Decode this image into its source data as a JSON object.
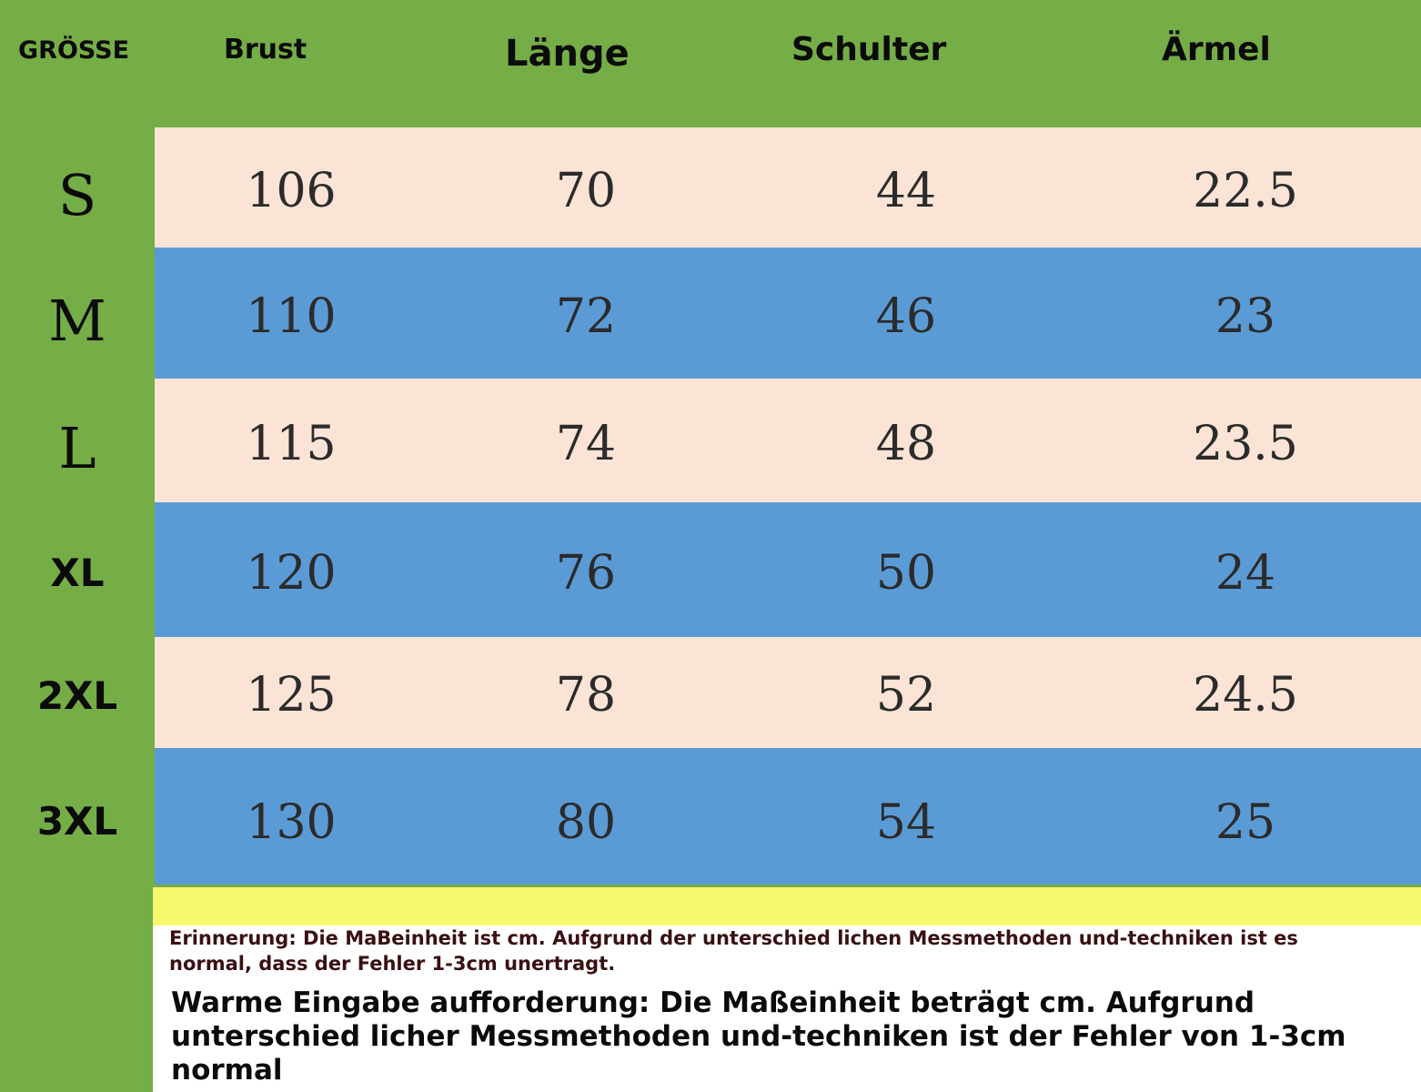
{
  "header": {
    "size": "GRÖSSE",
    "brust": "Brust",
    "laenge": "Länge",
    "schulter": "Schulter",
    "aermel": "Ärmel"
  },
  "rows": [
    {
      "size": "S",
      "brust": "106",
      "laenge": "70",
      "schulter": "44",
      "aermel": "22.5"
    },
    {
      "size": "M",
      "brust": "110",
      "laenge": "72",
      "schulter": "46",
      "aermel": "23"
    },
    {
      "size": "L",
      "brust": "115",
      "laenge": "74",
      "schulter": "48",
      "aermel": "23.5"
    },
    {
      "size": "XL",
      "brust": "120",
      "laenge": "76",
      "schulter": "50",
      "aermel": "24"
    },
    {
      "size": "2XL",
      "brust": "125",
      "laenge": "78",
      "schulter": "52",
      "aermel": "24.5"
    },
    {
      "size": "3XL",
      "brust": "130",
      "laenge": "80",
      "schulter": "54",
      "aermel": "25"
    }
  ],
  "notes": {
    "reminder": "Erinnerung: Die MaBeinheit ist cm. Aufgrund der unterschied lichen Messmethoden und-techniken ist es normal, dass der Fehler 1-3cm unertragt.",
    "warm": "Warme Eingabe aufforderung: Die Maßeinheit beträgt cm. Aufgrund unterschied licher Messmethoden und-techniken ist der Fehler von 1-3cm normal"
  },
  "colors": {
    "green": "#75ad47",
    "peach": "#fbe4d6",
    "blue": "#5b9bd5",
    "yellow": "#f6f870"
  }
}
